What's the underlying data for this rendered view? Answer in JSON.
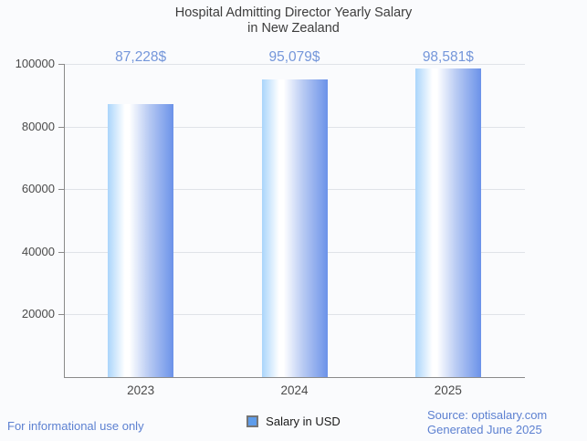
{
  "title": {
    "line1": "Hospital Admitting Director Yearly Salary",
    "line2": "in New Zealand"
  },
  "chart_data": {
    "type": "bar",
    "title": "Hospital Admitting Director Yearly Salary in New Zealand",
    "categories": [
      "2023",
      "2024",
      "2025"
    ],
    "values": [
      87228,
      95079,
      98581
    ],
    "value_labels": [
      "87,228$",
      "95,079$",
      "98,581$"
    ],
    "series_name": "Salary in USD",
    "xlabel": "",
    "ylabel": "",
    "ylim": [
      0,
      100000
    ],
    "yticks": [
      20000,
      40000,
      60000,
      80000,
      100000
    ],
    "ytick_labels": [
      "20000",
      "40000",
      "60000",
      "80000",
      "100000"
    ],
    "grid": "horizontal",
    "legend_position": "bottom-center"
  },
  "legend": {
    "label": "Salary in USD"
  },
  "footer": {
    "disclaimer": "For informational use only",
    "source": "Source: optisalary.com",
    "generated": "Generated June 2025"
  },
  "colors": {
    "background": "#fafbfd",
    "title_text": "#3d3d3d",
    "tick_label": "#4a4a4a",
    "axis_line": "#8a8a8a",
    "gridline": "#e0e3e8",
    "bar_gradient_left": "#aad5fb",
    "bar_gradient_highlight": "#ffffff",
    "bar_gradient_mid": "#b9cbf3",
    "bar_gradient_right": "#6b92e9",
    "value_label": "#7496da",
    "footer_text": "#5d81d1",
    "legend_swatch_fill": "#5e9cea",
    "legend_swatch_border": "#757575"
  }
}
